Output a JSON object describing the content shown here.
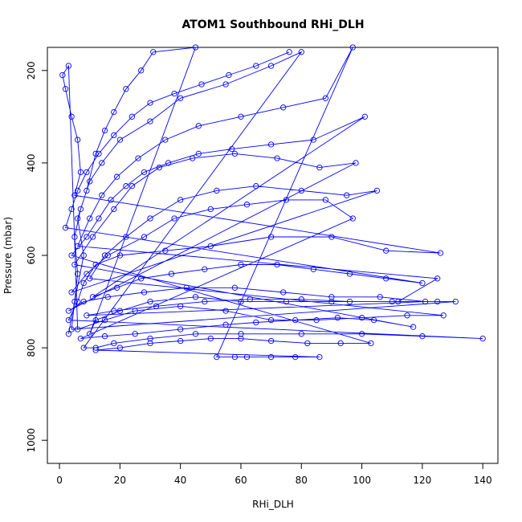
{
  "chart_data": {
    "type": "scatter",
    "title": "ATOM1 Southbound RHi_DLH",
    "xlabel": "RHi_DLH",
    "ylabel": "Pressure (mbar)",
    "xlim": [
      -4,
      145
    ],
    "ylim": [
      1050,
      150
    ],
    "y_axis_reversed": true,
    "x_ticks": [
      0,
      20,
      40,
      60,
      80,
      100,
      120,
      140
    ],
    "y_ticks": [
      200,
      400,
      600,
      800,
      1000
    ],
    "grid": false,
    "legend": "none",
    "marker": "open-circle",
    "connected": true,
    "series": [
      {
        "color": "#0000ff",
        "points": [
          [
            3,
            770
          ],
          [
            5,
            700
          ],
          [
            8,
            600
          ],
          [
            6,
            520
          ],
          [
            9,
            460
          ],
          [
            12,
            380
          ],
          [
            15,
            330
          ],
          [
            18,
            290
          ],
          [
            22,
            240
          ],
          [
            27,
            200
          ],
          [
            31,
            160
          ],
          [
            45,
            150
          ],
          [
            10,
            770
          ],
          [
            12,
            740
          ],
          [
            20,
            720
          ],
          [
            30,
            700
          ],
          [
            45,
            690
          ],
          [
            60,
            700
          ],
          [
            75,
            700
          ],
          [
            90,
            700
          ],
          [
            110,
            700
          ],
          [
            125,
            700
          ],
          [
            131,
            700
          ],
          [
            4,
            760
          ],
          [
            6,
            640
          ],
          [
            5,
            560
          ],
          [
            7,
            500
          ],
          [
            10,
            440
          ],
          [
            14,
            400
          ],
          [
            20,
            350
          ],
          [
            30,
            310
          ],
          [
            40,
            260
          ],
          [
            55,
            230
          ],
          [
            70,
            190
          ],
          [
            80,
            160
          ],
          [
            8,
            800
          ],
          [
            12,
            800
          ],
          [
            18,
            790
          ],
          [
            30,
            780
          ],
          [
            45,
            770
          ],
          [
            60,
            770
          ],
          [
            80,
            770
          ],
          [
            100,
            770
          ],
          [
            120,
            775
          ],
          [
            140,
            780
          ],
          [
            3,
            740
          ],
          [
            6,
            700
          ],
          [
            8,
            660
          ],
          [
            12,
            620
          ],
          [
            20,
            600
          ],
          [
            35,
            590
          ],
          [
            50,
            580
          ],
          [
            70,
            560
          ],
          [
            90,
            560
          ],
          [
            108,
            590
          ],
          [
            126,
            595
          ],
          [
            5,
            470
          ],
          [
            7,
            420
          ],
          [
            6,
            350
          ],
          [
            4,
            300
          ],
          [
            2,
            240
          ],
          [
            1,
            210
          ],
          [
            3,
            190
          ],
          [
            6,
            760
          ],
          [
            15,
            740
          ],
          [
            25,
            720
          ],
          [
            40,
            710
          ],
          [
            55,
            720
          ],
          [
            70,
            740
          ],
          [
            85,
            740
          ],
          [
            100,
            735
          ],
          [
            115,
            730
          ],
          [
            127,
            730
          ],
          [
            10,
            650
          ],
          [
            15,
            600
          ],
          [
            22,
            560
          ],
          [
            30,
            520
          ],
          [
            40,
            480
          ],
          [
            52,
            460
          ],
          [
            65,
            450
          ],
          [
            80,
            460
          ],
          [
            95,
            470
          ],
          [
            105,
            460
          ],
          [
            4,
            680
          ],
          [
            9,
            640
          ],
          [
            16,
            600
          ],
          [
            28,
            560
          ],
          [
            38,
            520
          ],
          [
            50,
            500
          ],
          [
            62,
            490
          ],
          [
            75,
            480
          ],
          [
            88,
            480
          ],
          [
            97,
            520
          ],
          [
            7,
            780
          ],
          [
            15,
            775
          ],
          [
            25,
            770
          ],
          [
            40,
            760
          ],
          [
            55,
            750
          ],
          [
            65,
            745
          ],
          [
            78,
            740
          ],
          [
            92,
            735
          ],
          [
            104,
            740
          ],
          [
            117,
            755
          ],
          [
            5,
            620
          ],
          [
            11,
            560
          ],
          [
            18,
            500
          ],
          [
            24,
            450
          ],
          [
            33,
            410
          ],
          [
            44,
            390
          ],
          [
            58,
            380
          ],
          [
            72,
            390
          ],
          [
            86,
            410
          ],
          [
            98,
            400
          ],
          [
            3,
            720
          ],
          [
            8,
            700
          ],
          [
            16,
            690
          ],
          [
            28,
            680
          ],
          [
            42,
            670
          ],
          [
            58,
            670
          ],
          [
            74,
            680
          ],
          [
            90,
            690
          ],
          [
            106,
            690
          ],
          [
            121,
            700
          ],
          [
            9,
            730
          ],
          [
            18,
            720
          ],
          [
            32,
            710
          ],
          [
            48,
            700
          ],
          [
            63,
            695
          ],
          [
            80,
            695
          ],
          [
            96,
            700
          ],
          [
            112,
            700
          ],
          [
            125,
            650
          ],
          [
            6,
            580
          ],
          [
            10,
            520
          ],
          [
            14,
            470
          ],
          [
            19,
            430
          ],
          [
            26,
            390
          ],
          [
            35,
            350
          ],
          [
            46,
            320
          ],
          [
            60,
            300
          ],
          [
            74,
            280
          ],
          [
            88,
            260
          ],
          [
            97,
            150
          ],
          [
            52,
            820
          ],
          [
            58,
            820
          ],
          [
            62,
            820
          ],
          [
            70,
            820
          ],
          [
            78,
            820
          ],
          [
            86,
            820
          ],
          [
            12,
            805
          ],
          [
            20,
            800
          ],
          [
            30,
            790
          ],
          [
            40,
            785
          ],
          [
            50,
            780
          ],
          [
            60,
            780
          ],
          [
            70,
            785
          ],
          [
            82,
            790
          ],
          [
            93,
            790
          ],
          [
            103,
            790
          ],
          [
            4,
            600
          ],
          [
            9,
            560
          ],
          [
            13,
            520
          ],
          [
            17,
            480
          ],
          [
            22,
            450
          ],
          [
            28,
            420
          ],
          [
            36,
            400
          ],
          [
            46,
            380
          ],
          [
            57,
            370
          ],
          [
            70,
            360
          ],
          [
            84,
            350
          ],
          [
            101,
            300
          ],
          [
            11,
            690
          ],
          [
            19,
            670
          ],
          [
            27,
            650
          ],
          [
            37,
            640
          ],
          [
            48,
            630
          ],
          [
            60,
            620
          ],
          [
            72,
            620
          ],
          [
            84,
            630
          ],
          [
            96,
            640
          ],
          [
            108,
            650
          ],
          [
            120,
            660
          ],
          [
            2,
            540
          ],
          [
            4,
            500
          ],
          [
            6,
            460
          ],
          [
            9,
            420
          ],
          [
            13,
            380
          ],
          [
            18,
            340
          ],
          [
            24,
            300
          ],
          [
            30,
            270
          ],
          [
            38,
            250
          ],
          [
            47,
            230
          ],
          [
            56,
            210
          ],
          [
            65,
            190
          ],
          [
            76,
            160
          ]
        ]
      }
    ]
  }
}
